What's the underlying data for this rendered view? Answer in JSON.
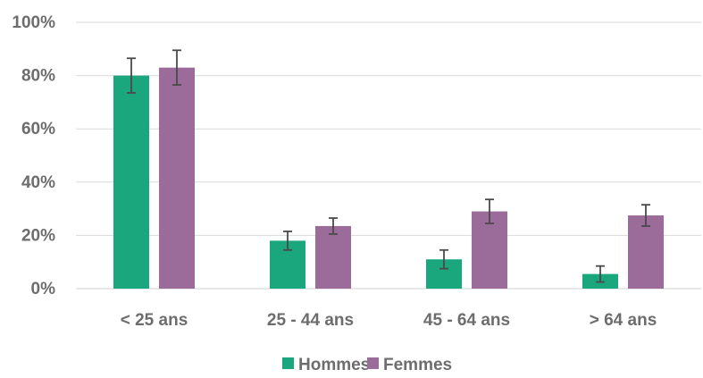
{
  "chart_data": {
    "type": "bar",
    "categories": [
      "< 25 ans",
      "25 - 44 ans",
      "45 - 64 ans",
      "> 64 ans"
    ],
    "series": [
      {
        "name": "Hommes",
        "color": "#1aa77e",
        "values": [
          80,
          18,
          11,
          5.5
        ],
        "error": [
          6.5,
          3.5,
          3.5,
          3
        ]
      },
      {
        "name": "Femmes",
        "color": "#9b6b99",
        "values": [
          83,
          23.5,
          29,
          27.5
        ],
        "error": [
          6.5,
          3,
          4.5,
          4
        ]
      }
    ],
    "y_ticks": [
      "0%",
      "20%",
      "40%",
      "60%",
      "80%",
      "100%"
    ],
    "ylim": [
      0,
      100
    ],
    "grid": true,
    "legend": "bottom",
    "title": "",
    "xlabel": "",
    "ylabel": ""
  }
}
